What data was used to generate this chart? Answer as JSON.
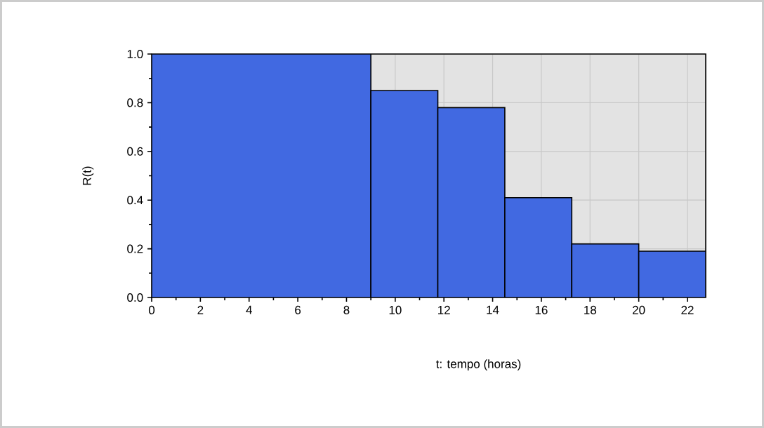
{
  "chart_data": {
    "type": "histogram",
    "xlabel": "t: tempo (horas)",
    "ylabel": "R(t)",
    "bins": [
      0,
      9,
      11.75,
      14.5,
      17.25,
      20,
      22.75
    ],
    "values": [
      1.0,
      0.85,
      0.78,
      0.41,
      0.22,
      0.19
    ],
    "color": "#4169e1",
    "xlim": [
      0,
      22.75
    ],
    "ylim": [
      0,
      1
    ],
    "xticks": [
      0,
      2,
      4,
      6,
      8,
      10,
      12,
      14,
      16,
      18,
      20,
      22
    ],
    "yticks": [
      {
        "value": 0,
        "label": "0.0"
      },
      {
        "value": 0.2,
        "label": "0.2"
      },
      {
        "value": 0.4,
        "label": "0.4"
      },
      {
        "value": 0.6,
        "label": "0.6"
      },
      {
        "value": 0.8,
        "label": "0.8"
      },
      {
        "value": 1,
        "label": "1.0"
      }
    ],
    "grid": true
  }
}
